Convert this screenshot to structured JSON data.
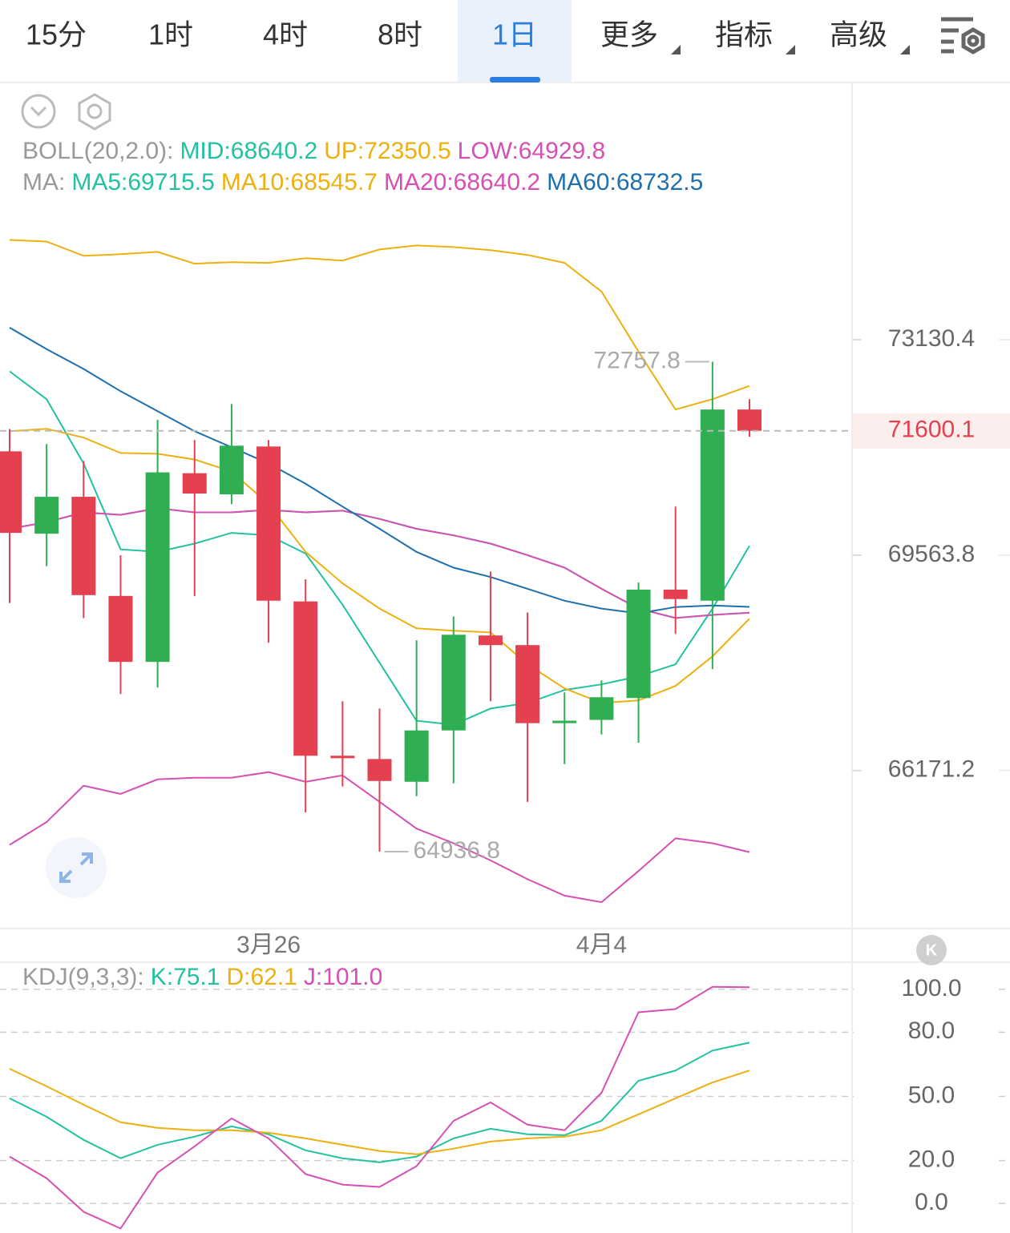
{
  "tabs": [
    {
      "label": "15分"
    },
    {
      "label": "1时"
    },
    {
      "label": "4时"
    },
    {
      "label": "8时"
    },
    {
      "label": "1日",
      "selected": true
    },
    {
      "label": "更多",
      "dropdown": true
    },
    {
      "label": "指标",
      "dropdown": true
    },
    {
      "label": "高级",
      "dropdown": true
    }
  ],
  "badge": "K",
  "chart_data": [
    {
      "type": "candlestick",
      "boll_label": "BOLL(20,2.0):",
      "ma_label": "MA:",
      "categories": [
        null,
        null,
        null,
        null,
        null,
        null,
        null,
        "3月26",
        null,
        null,
        null,
        null,
        null,
        null,
        null,
        null,
        "4月4",
        null,
        null,
        null,
        null
      ],
      "open": [
        71260,
        69910,
        70512,
        68908,
        67861,
        70899,
        70552,
        71340,
        68820,
        66399,
        66348,
        65999,
        66790,
        68278,
        68126,
        66903,
        66954,
        67294,
        69009,
        68832,
        71955
      ],
      "high": [
        71630,
        71380,
        71100,
        69560,
        71781,
        71447,
        72048,
        71447,
        69173,
        67244,
        67130,
        68202,
        68580,
        69299,
        68643,
        67382,
        67571,
        69122,
        70352,
        72757.8,
        72128
      ],
      "low": [
        68795,
        69387,
        68555,
        67357,
        67458,
        68908,
        70392,
        68164,
        65532,
        65925,
        64936.8,
        65778,
        65974,
        67244,
        65692,
        66272,
        66727,
        66600,
        68303,
        67748,
        71500
      ],
      "close": [
        69924,
        70512,
        68921,
        67861,
        70913,
        70565,
        71353,
        68832,
        66399,
        66361,
        66011,
        66790,
        68290,
        68126,
        66903,
        66941,
        67307,
        69009,
        68858,
        71955,
        71600.1
      ],
      "up_color": "#2fae52",
      "down_color": "#e5404f",
      "bands": [
        {
          "name": "MID:68640.2",
          "color": "#22c1a0",
          "values": [
            69991,
            70098,
            70258,
            70218,
            70325,
            70258,
            70258,
            70298,
            70258,
            70285,
            70151,
            69991,
            69884,
            69750,
            69564,
            69362,
            69022,
            68706,
            68555,
            68605,
            68640.2
          ]
        },
        {
          "name": "UP:72350.5",
          "color": "#eeb010",
          "values": [
            74843,
            74815,
            74569,
            74596,
            74637,
            74432,
            74459,
            74446,
            74528,
            74487,
            74678,
            74747,
            74720,
            74665,
            74583,
            74446,
            73952,
            72930,
            71955,
            72128,
            72350.5
          ]
        },
        {
          "name": "LOW:64929.8",
          "color": "#d64fb4",
          "values": [
            65040,
            65384,
            65938,
            65814,
            66036,
            66061,
            66061,
            66147,
            65999,
            66097,
            65692,
            65286,
            65064,
            64806,
            64523,
            64277,
            64179,
            64646,
            65138,
            65064,
            64929.8
          ]
        }
      ],
      "series": [
        {
          "name": "MA5:69715.5",
          "color": "#22c1a0",
          "values": [
            72596,
            72128,
            71060,
            69657,
            69617,
            69750,
            69924,
            69884,
            69590,
            68769,
            67848,
            66941,
            66878,
            67130,
            67218,
            67420,
            67508,
            67634,
            67823,
            68706,
            69715.5
          ]
        },
        {
          "name": "MA10:68545.7",
          "color": "#eeb010",
          "values": [
            71594,
            71634,
            71487,
            71233,
            71220,
            71126,
            70926,
            70392,
            69617,
            69110,
            68706,
            68391,
            68353,
            68328,
            67823,
            67445,
            67218,
            67256,
            67483,
            67949,
            68545.7
          ]
        },
        {
          "name": "MA20:68640.2",
          "color": "#d64fb4",
          "values": [
            69991,
            70098,
            70258,
            70218,
            70325,
            70258,
            70258,
            70298,
            70258,
            70285,
            70151,
            69991,
            69884,
            69750,
            69564,
            69362,
            69022,
            68706,
            68555,
            68605,
            68640.2
          ]
        },
        {
          "name": "MA60:68732.5",
          "color": "#1d6fae",
          "values": [
            73336,
            72970,
            72636,
            72262,
            71928,
            71594,
            71327,
            71060,
            70726,
            70352,
            69991,
            69617,
            69362,
            69211,
            69022,
            68832,
            68706,
            68630,
            68731,
            68756,
            68732.5
          ]
        }
      ],
      "ylim": [
        63800,
        77600
      ],
      "log_scale": true,
      "yticks": [
        73130.4,
        69563.8,
        66171.2
      ]
    },
    {
      "type": "line",
      "label": "KDJ(9,3,3):",
      "series": [
        {
          "name": "K:75.1",
          "color": "#22c1a0",
          "values": [
            49.1,
            40.5,
            29.7,
            21.1,
            27.4,
            31.2,
            36.0,
            32.3,
            24.8,
            21.1,
            19.2,
            21.9,
            30.4,
            34.9,
            32.3,
            31.9,
            38.6,
            57.3,
            62.1,
            71.4,
            75.1
          ]
        },
        {
          "name": "D:62.1",
          "color": "#eeb010",
          "values": [
            62.9,
            54.7,
            46.1,
            37.9,
            35.3,
            34.2,
            34.2,
            33.0,
            30.4,
            27.4,
            24.5,
            23.0,
            25.6,
            28.9,
            30.4,
            31.2,
            34.2,
            41.6,
            49.1,
            56.5,
            62.1
          ]
        },
        {
          "name": "J:101.0",
          "color": "#d64fb4",
          "values": [
            21.9,
            11.8,
            -3.9,
            -11.7,
            14.4,
            26.7,
            39.7,
            30.4,
            13.7,
            8.8,
            7.7,
            17.4,
            38.6,
            47.2,
            36.8,
            34.2,
            51.7,
            89.3,
            90.8,
            101.2,
            101.0
          ]
        }
      ],
      "ylim": [
        -13.8,
        112.3
      ],
      "yticks": [
        {
          "value": 100,
          "label": "100.0"
        },
        {
          "value": 80,
          "label": "80.0"
        },
        {
          "value": 50,
          "label": "50.0"
        },
        {
          "value": 20,
          "label": "20.0"
        },
        {
          "value": 0,
          "label": "0.0"
        }
      ],
      "grid": true
    }
  ]
}
